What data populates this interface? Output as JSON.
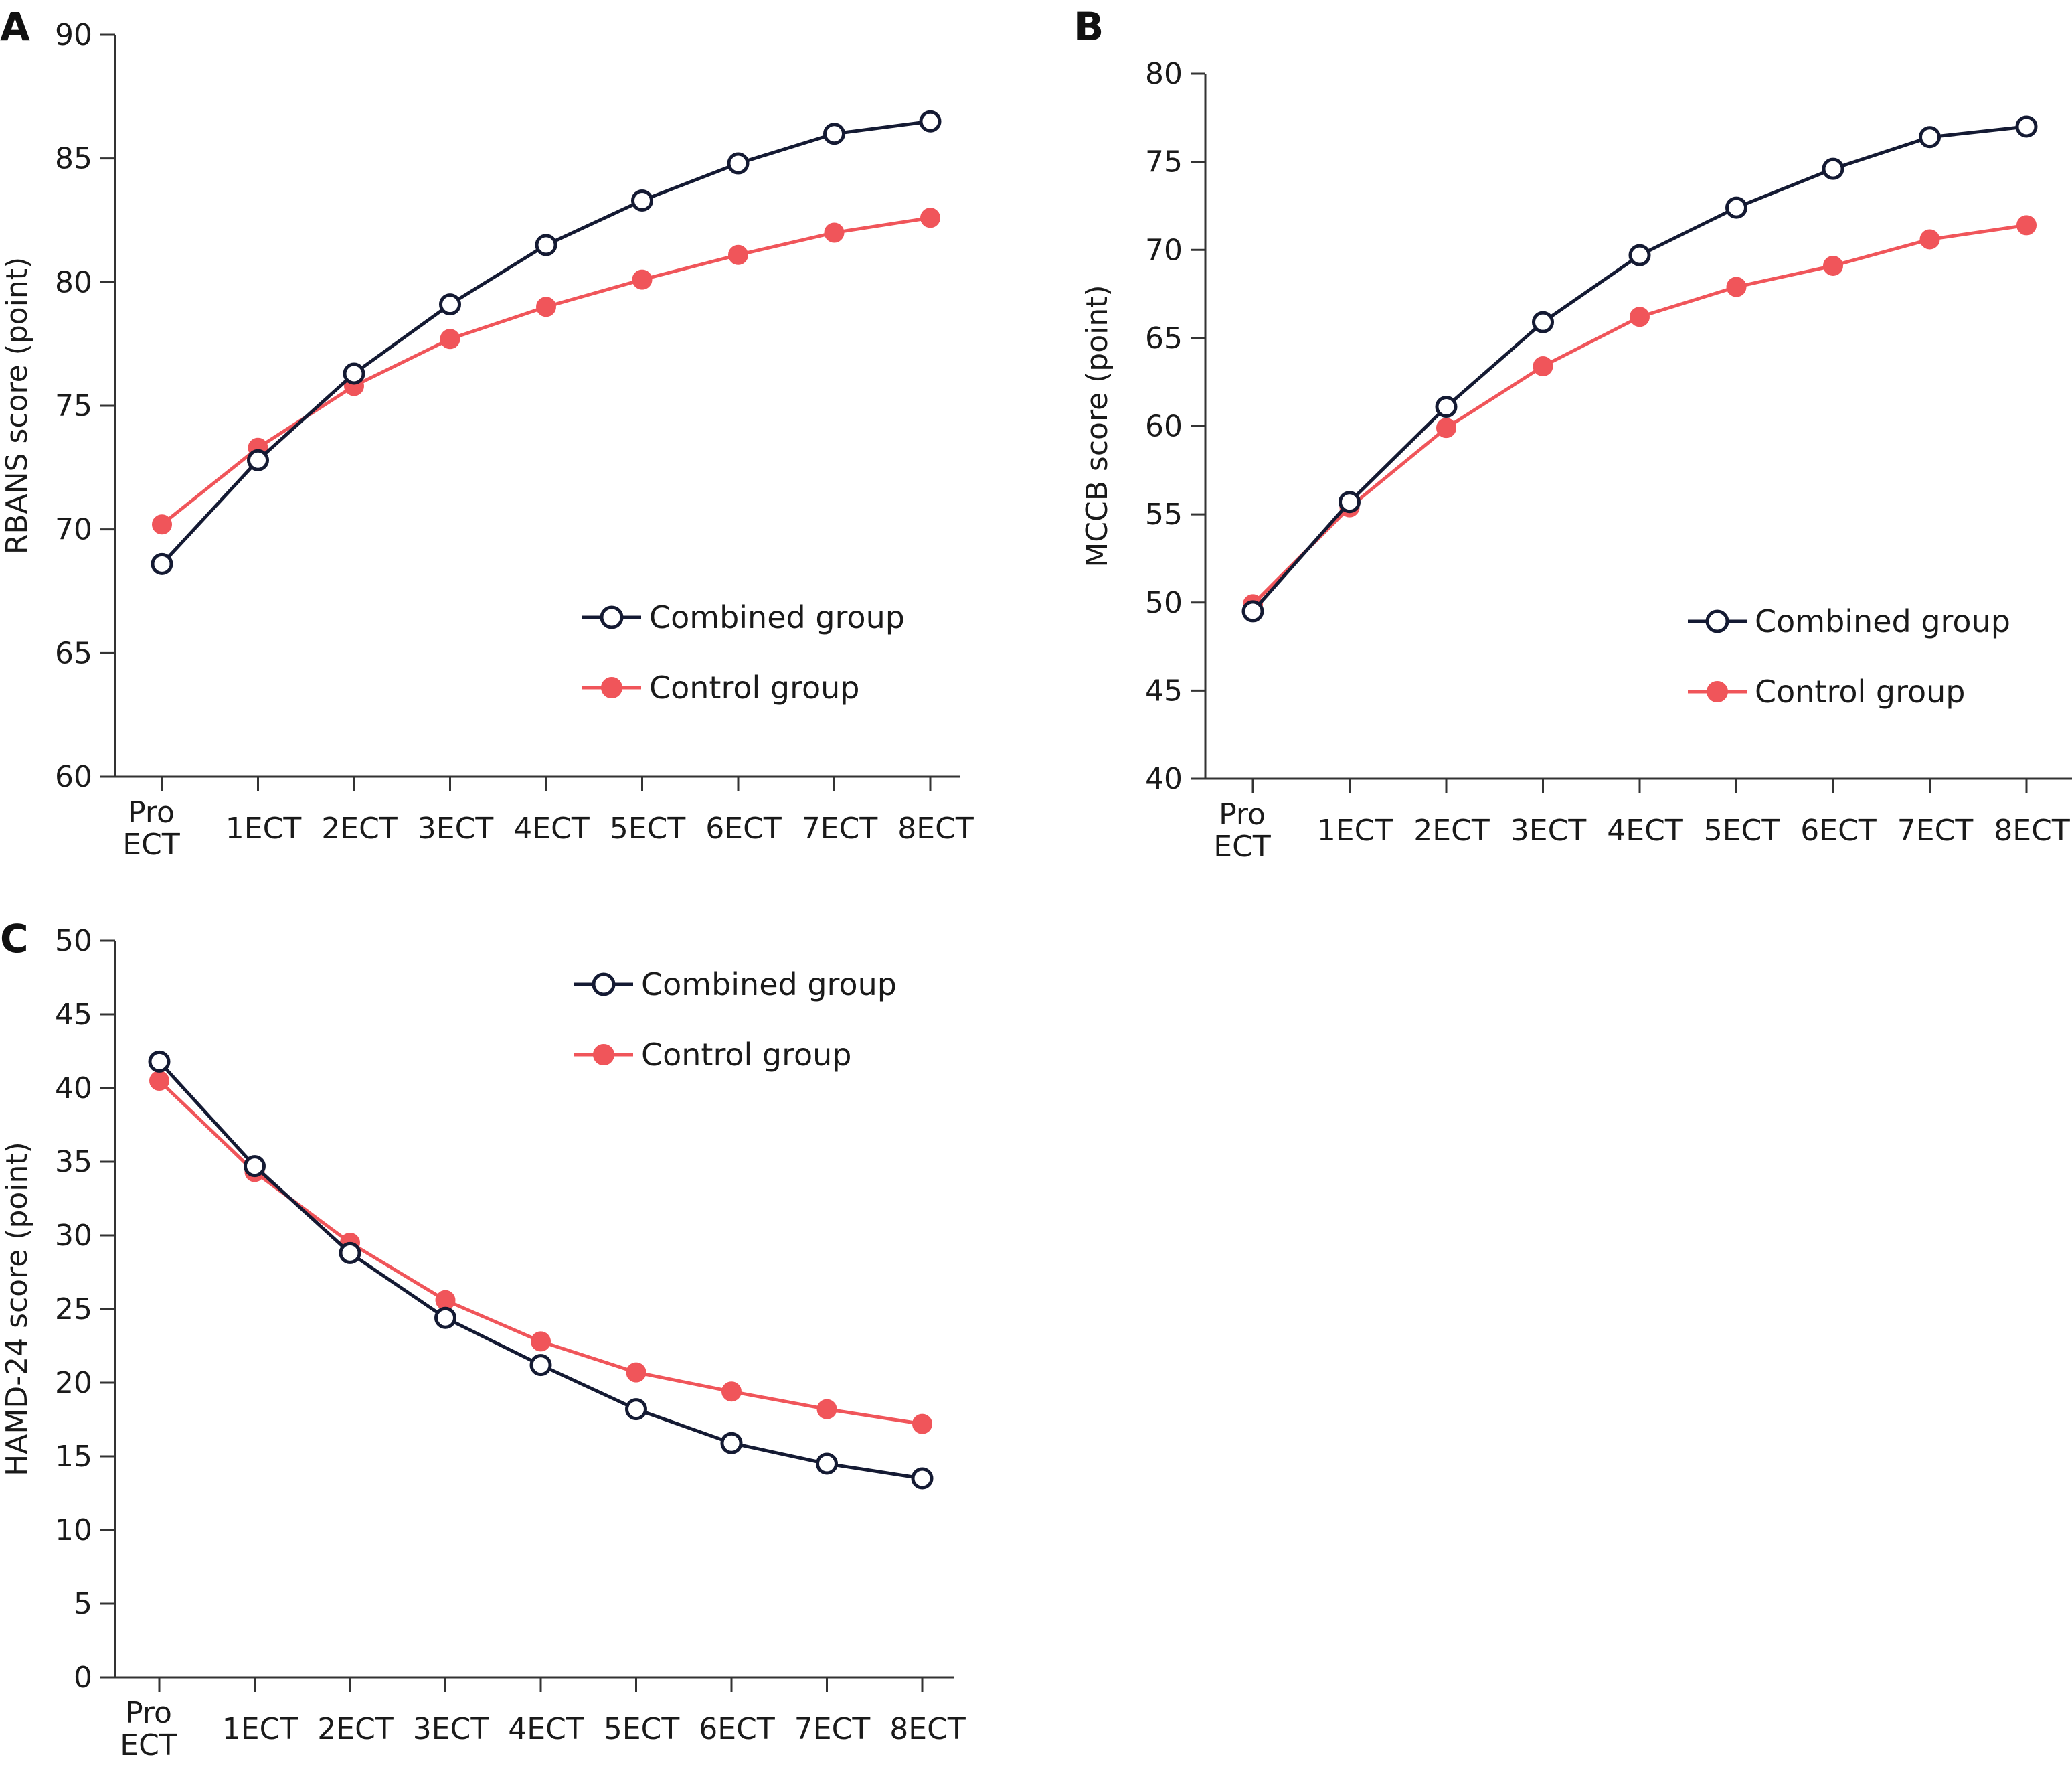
{
  "colors": {
    "combined": "#141a33",
    "control": "#f0555a",
    "axis": "#333333"
  },
  "chart_data": [
    {
      "panel": "A",
      "type": "line",
      "x": [
        [
          "Pro",
          "ECT"
        ],
        "1ECT",
        "2ECT",
        "3ECT",
        "4ECT",
        "5ECT",
        "6ECT",
        "7ECT",
        "8ECT"
      ],
      "ylabel": "RBANS score (point)",
      "ylim": [
        60,
        90
      ],
      "yticks": [
        60,
        65,
        70,
        75,
        80,
        85,
        90
      ],
      "legend_placement": "right",
      "series": [
        {
          "name": "Combined group",
          "marker": "open-circle",
          "values": [
            68.6,
            72.8,
            76.3,
            79.1,
            81.5,
            83.3,
            84.8,
            86.0,
            86.5
          ]
        },
        {
          "name": "Control group",
          "marker": "filled-circle",
          "values": [
            70.2,
            73.3,
            75.8,
            77.7,
            79.0,
            80.1,
            81.1,
            82.0,
            82.6
          ]
        }
      ]
    },
    {
      "panel": "B",
      "type": "line",
      "x": [
        [
          "Pro",
          "ECT"
        ],
        "1ECT",
        "2ECT",
        "3ECT",
        "4ECT",
        "5ECT",
        "6ECT",
        "7ECT",
        "8ECT"
      ],
      "ylabel": "MCCB score (point)",
      "ylim": [
        40,
        80
      ],
      "yticks": [
        40,
        45,
        50,
        55,
        60,
        65,
        70,
        75,
        80
      ],
      "legend_placement": "right",
      "series": [
        {
          "name": "Combined group",
          "marker": "open-circle",
          "values": [
            49.5,
            55.7,
            61.1,
            65.9,
            69.7,
            72.4,
            74.6,
            76.4,
            77.0
          ]
        },
        {
          "name": "Control group",
          "marker": "filled-circle",
          "values": [
            49.9,
            55.4,
            59.9,
            63.4,
            66.2,
            67.9,
            69.1,
            70.6,
            71.4
          ]
        }
      ]
    },
    {
      "panel": "C",
      "type": "line",
      "x": [
        [
          "Pro",
          "ECT"
        ],
        "1ECT",
        "2ECT",
        "3ECT",
        "4ECT",
        "5ECT",
        "6ECT",
        "7ECT",
        "8ECT"
      ],
      "ylabel": "HAMD-24 score (point)",
      "ylim": [
        0,
        50
      ],
      "yticks": [
        0,
        5,
        10,
        15,
        20,
        25,
        30,
        35,
        40,
        45,
        50
      ],
      "legend_placement": "top-right",
      "series": [
        {
          "name": "Combined group",
          "marker": "open-circle",
          "values": [
            41.8,
            34.7,
            28.8,
            24.4,
            21.2,
            18.2,
            15.9,
            14.5,
            13.5
          ]
        },
        {
          "name": "Control group",
          "marker": "filled-circle",
          "values": [
            40.5,
            34.3,
            29.5,
            25.6,
            22.8,
            20.7,
            19.4,
            18.2,
            17.2
          ]
        }
      ]
    }
  ]
}
